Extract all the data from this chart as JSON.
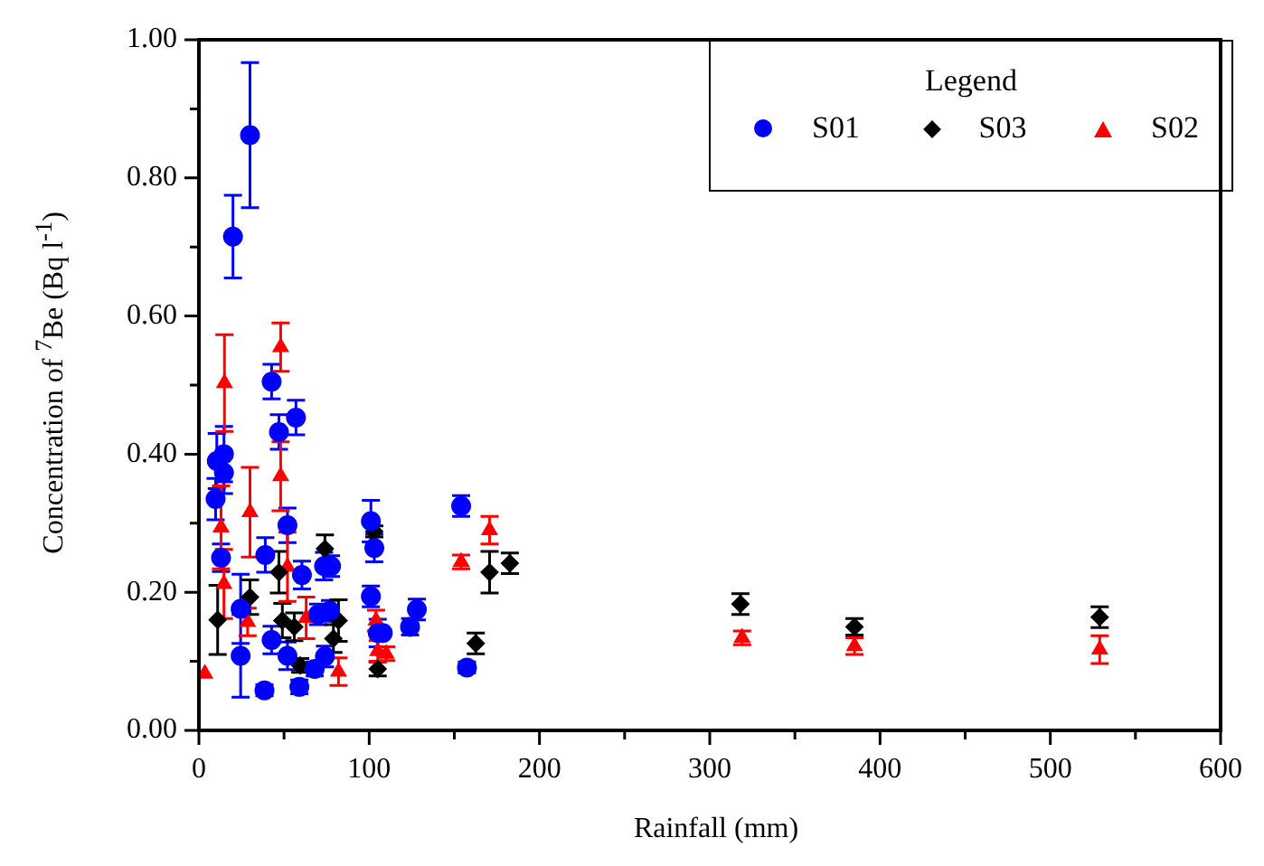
{
  "chart_data": {
    "type": "scatter",
    "xlabel": "Rainfall (mm)",
    "ylabel": "Concentration of $^{7}$Be (Bq l$^{-1}$)",
    "legend_title": "Legend",
    "legend": "top right",
    "grid": false,
    "xlim": [
      0,
      600
    ],
    "xticks": [
      0,
      100,
      200,
      300,
      400,
      500,
      600
    ],
    "ylim": [
      0,
      1
    ],
    "yticks": [
      {
        "value": 0,
        "label": "0.00"
      },
      {
        "value": 0.2,
        "label": "0.20"
      },
      {
        "value": 0.4,
        "label": "0.40"
      },
      {
        "value": 0.6,
        "label": "0.60"
      },
      {
        "value": 0.8,
        "label": "0.80"
      },
      {
        "value": 1,
        "label": "1.00"
      }
    ],
    "series": [
      {
        "name": "S01",
        "color": "#0000ff",
        "marker": "circle",
        "x": [
          20,
          30,
          42.7,
          57,
          47,
          10.5,
          14.7,
          14.7,
          9.8,
          52,
          13,
          39,
          60.5,
          73.5,
          77.6,
          101,
          103,
          101,
          105,
          24.5,
          24.5,
          38.5,
          42.7,
          52,
          59,
          70,
          74,
          68,
          124,
          154,
          157.4,
          128,
          108,
          77
        ],
        "values": [
          0.715,
          0.862,
          0.505,
          0.453,
          0.432,
          0.39,
          0.4,
          0.373,
          0.335,
          0.297,
          0.25,
          0.254,
          0.225,
          0.238,
          0.238,
          0.303,
          0.264,
          0.194,
          0.141,
          0.176,
          0.108,
          0.058,
          0.131,
          0.108,
          0.063,
          0.168,
          0.107,
          0.089,
          0.15,
          0.325,
          0.091,
          0.175,
          0.141,
          0.173
        ],
        "errors": [
          0.06,
          0.105,
          0.025,
          0.025,
          0.025,
          0.04,
          0.04,
          0.03,
          0.03,
          0.025,
          0.02,
          0.025,
          0.02,
          0.02,
          0.015,
          0.03,
          0.02,
          0.015,
          0.02,
          0.05,
          0.06,
          0.008,
          0.02,
          0.02,
          0.01,
          0.015,
          0.015,
          0.01,
          0.012,
          0.015,
          0.008,
          0.015,
          null,
          0.015
        ]
      },
      {
        "name": "S03",
        "color": "#000000",
        "marker": "diamond",
        "x": [
          11,
          30,
          47,
          49,
          56,
          59.5,
          74,
          82,
          79,
          103,
          105,
          162.6,
          170.7,
          182.6,
          318,
          385,
          529
        ],
        "values": [
          0.16,
          0.193,
          0.229,
          0.159,
          0.15,
          0.094,
          0.263,
          0.159,
          0.133,
          0.288,
          0.089,
          0.126,
          0.229,
          0.242,
          0.183,
          0.15,
          0.164
        ],
        "errors": [
          0.05,
          0.025,
          0.03,
          0.025,
          0.02,
          0.01,
          0.02,
          0.03,
          0.02,
          0.008,
          0.01,
          0.015,
          0.03,
          0.015,
          0.015,
          0.012,
          0.015
        ]
      },
      {
        "name": "S02",
        "color": "#ff0000",
        "marker": "triangle",
        "x": [
          3.5,
          15,
          13,
          14.7,
          28.6,
          30,
          48,
          48,
          52,
          63,
          82,
          104,
          105,
          110,
          154,
          170.7,
          319,
          385,
          529
        ],
        "values": [
          0.082,
          0.503,
          0.294,
          0.212,
          0.157,
          0.316,
          0.555,
          0.368,
          0.237,
          0.163,
          0.085,
          0.159,
          0.115,
          0.111,
          0.244,
          0.29,
          0.134,
          0.122,
          0.117
        ],
        "errors": [
          null,
          0.07,
          0.06,
          0.05,
          0.02,
          0.065,
          0.035,
          0.05,
          0.05,
          0.03,
          0.02,
          0.015,
          0.015,
          0.01,
          0.01,
          0.02,
          0.01,
          0.012,
          0.02
        ]
      }
    ]
  }
}
